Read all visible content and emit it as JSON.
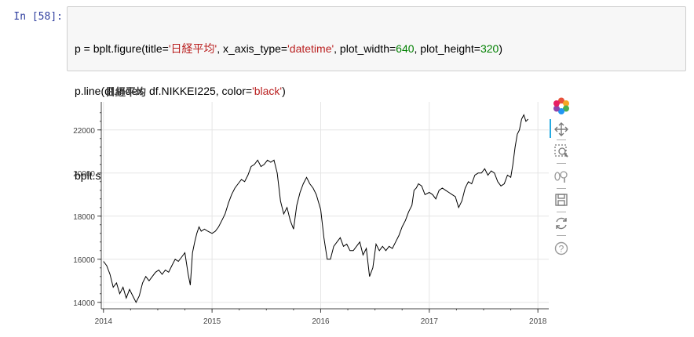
{
  "cell": {
    "prompt": "In [58]:",
    "code": {
      "l1_a": "p = bplt.figure(title=",
      "l1_title": "'日経平均'",
      "l1_b": ", x_axis_type=",
      "l1_type": "'datetime'",
      "l1_c": ", plot_width=",
      "l1_width": "640",
      "l1_d": ", plot_height=",
      "l1_height": "320",
      "l1_e": ")",
      "l2_a": "p.line(df.index, df.NIKKEI225, color=",
      "l2_color": "'black'",
      "l2_b": ")",
      "l4": "bplt.show(p)"
    }
  },
  "chart_data": {
    "type": "line",
    "title": "日経平均",
    "xlabel": "",
    "ylabel": "",
    "line_color": "#000000",
    "grid": true,
    "x_ticks": [
      "2014",
      "2015",
      "2016",
      "2017",
      "2018"
    ],
    "y_ticks": [
      "14000",
      "16000",
      "18000",
      "20000",
      "22000"
    ],
    "xlim": [
      2013.98,
      2018.1
    ],
    "ylim": [
      13700,
      23300
    ],
    "x": [
      2014.0,
      2014.03,
      2014.06,
      2014.09,
      2014.12,
      2014.15,
      2014.18,
      2014.21,
      2014.24,
      2014.27,
      2014.3,
      2014.33,
      2014.36,
      2014.39,
      2014.42,
      2014.45,
      2014.48,
      2014.51,
      2014.54,
      2014.57,
      2014.6,
      2014.63,
      2014.66,
      2014.69,
      2014.72,
      2014.75,
      2014.78,
      2014.8,
      2014.82,
      2014.84,
      2014.86,
      2014.88,
      2014.9,
      2014.93,
      2014.96,
      2015.0,
      2015.03,
      2015.06,
      2015.09,
      2015.12,
      2015.15,
      2015.18,
      2015.21,
      2015.24,
      2015.27,
      2015.3,
      2015.33,
      2015.36,
      2015.39,
      2015.42,
      2015.45,
      2015.48,
      2015.51,
      2015.54,
      2015.57,
      2015.6,
      2015.63,
      2015.66,
      2015.69,
      2015.72,
      2015.75,
      2015.78,
      2015.81,
      2015.84,
      2015.87,
      2015.9,
      2015.93,
      2015.96,
      2016.0,
      2016.03,
      2016.06,
      2016.09,
      2016.12,
      2016.15,
      2016.18,
      2016.21,
      2016.24,
      2016.27,
      2016.3,
      2016.33,
      2016.36,
      2016.39,
      2016.42,
      2016.45,
      2016.48,
      2016.51,
      2016.54,
      2016.57,
      2016.6,
      2016.63,
      2016.66,
      2016.69,
      2016.72,
      2016.75,
      2016.78,
      2016.81,
      2016.84,
      2016.86,
      2016.88,
      2016.9,
      2016.93,
      2016.96,
      2017.0,
      2017.03,
      2017.06,
      2017.09,
      2017.12,
      2017.15,
      2017.18,
      2017.21,
      2017.24,
      2017.27,
      2017.3,
      2017.33,
      2017.36,
      2017.39,
      2017.42,
      2017.45,
      2017.48,
      2017.51,
      2017.54,
      2017.57,
      2017.6,
      2017.63,
      2017.66,
      2017.69,
      2017.72,
      2017.75,
      2017.77,
      2017.79,
      2017.81,
      2017.83,
      2017.85,
      2017.87,
      2017.89,
      2017.91
    ],
    "values": [
      15900,
      15700,
      15300,
      14700,
      14900,
      14400,
      14700,
      14200,
      14600,
      14300,
      14000,
      14300,
      14900,
      15200,
      15000,
      15200,
      15400,
      15500,
      15300,
      15500,
      15400,
      15700,
      16000,
      15900,
      16100,
      16300,
      15300,
      14800,
      16300,
      16800,
      17200,
      17500,
      17300,
      17400,
      17300,
      17200,
      17300,
      17500,
      17800,
      18100,
      18600,
      19000,
      19300,
      19500,
      19700,
      19600,
      19900,
      20300,
      20400,
      20600,
      20300,
      20400,
      20600,
      20500,
      20600,
      20000,
      18700,
      18100,
      18400,
      17800,
      17400,
      18500,
      19100,
      19500,
      19800,
      19500,
      19300,
      19000,
      18300,
      17000,
      16000,
      16000,
      16600,
      16800,
      17000,
      16600,
      16700,
      16400,
      16400,
      16600,
      16800,
      16200,
      16500,
      15200,
      15600,
      16700,
      16400,
      16600,
      16400,
      16600,
      16500,
      16800,
      17100,
      17500,
      17800,
      18200,
      18500,
      19200,
      19300,
      19500,
      19400,
      19000,
      19100,
      19000,
      18800,
      19200,
      19300,
      19200,
      19100,
      19000,
      18900,
      18400,
      18700,
      19300,
      19600,
      19500,
      19900,
      20000,
      20000,
      20200,
      19900,
      20100,
      20000,
      19600,
      19400,
      19500,
      19900,
      19800,
      20400,
      21200,
      21800,
      22000,
      22500,
      22700,
      22400,
      22500
    ]
  }
}
